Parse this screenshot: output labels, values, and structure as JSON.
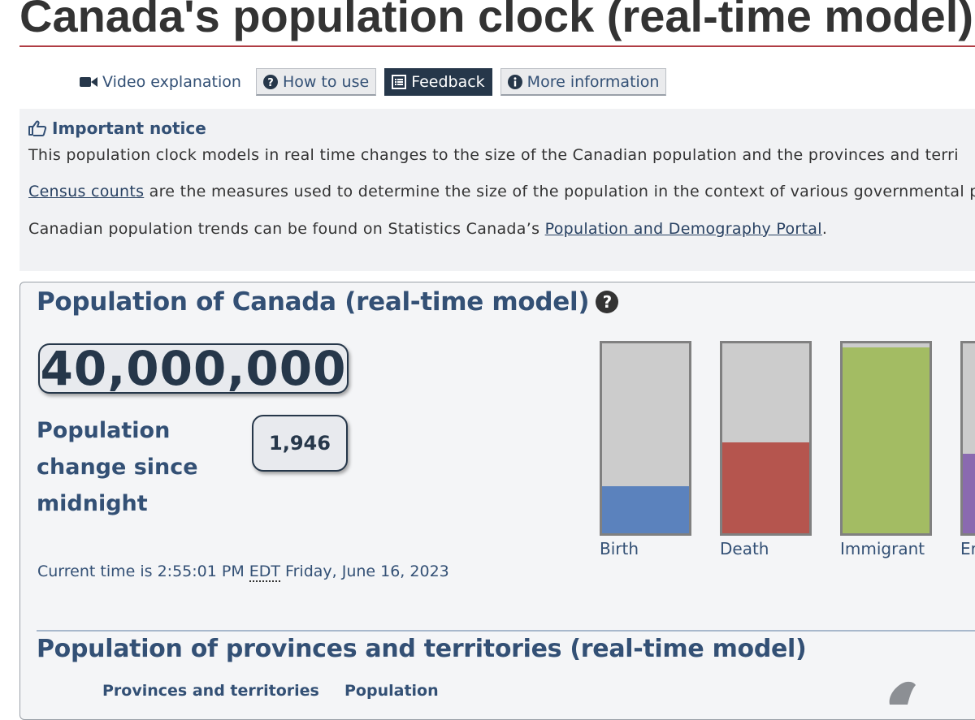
{
  "page": {
    "title": "Canada's population clock (real-time model)"
  },
  "toolbar": {
    "video": "Video explanation",
    "how_to_use": "How to use",
    "feedback": "Feedback",
    "more_info": "More information"
  },
  "notice": {
    "heading": "Important notice",
    "line1": "This population clock models in real time changes to the size of the Canadian population and the provinces and terri",
    "line2_link": "Census counts",
    "line2_rest": " are the measures used to determine the size of the population in the context of various governmental p",
    "line3_start": "Canadian population trends can be found on Statistics Canada’s ",
    "line3_link": "Population and Demography Portal",
    "line3_end": "."
  },
  "panel": {
    "title": "Population of Canada (real-time model)",
    "help_icon": "question-circle-icon",
    "population": "40,000,000",
    "change_label": "Population change since midnight",
    "change_value": "1,946",
    "time_prefix": "Current time is 2:55:01 PM ",
    "time_zone": "EDT",
    "time_suffix": " Friday, June 16, 2023"
  },
  "gauges": [
    {
      "label": "Birth",
      "fill": 0.25,
      "color": "#5b82bd"
    },
    {
      "label": "Death",
      "fill": 0.48,
      "color": "#b5554e"
    },
    {
      "label": "Immigrant",
      "fill": 0.98,
      "color": "#a3bc63"
    },
    {
      "label": "Er",
      "fill": 0.42,
      "color": "#8a6ab0"
    }
  ],
  "provinces": {
    "title": "Population of provinces and territories (real-time model)",
    "col1": "Provinces and territories",
    "col2": "Population"
  }
}
